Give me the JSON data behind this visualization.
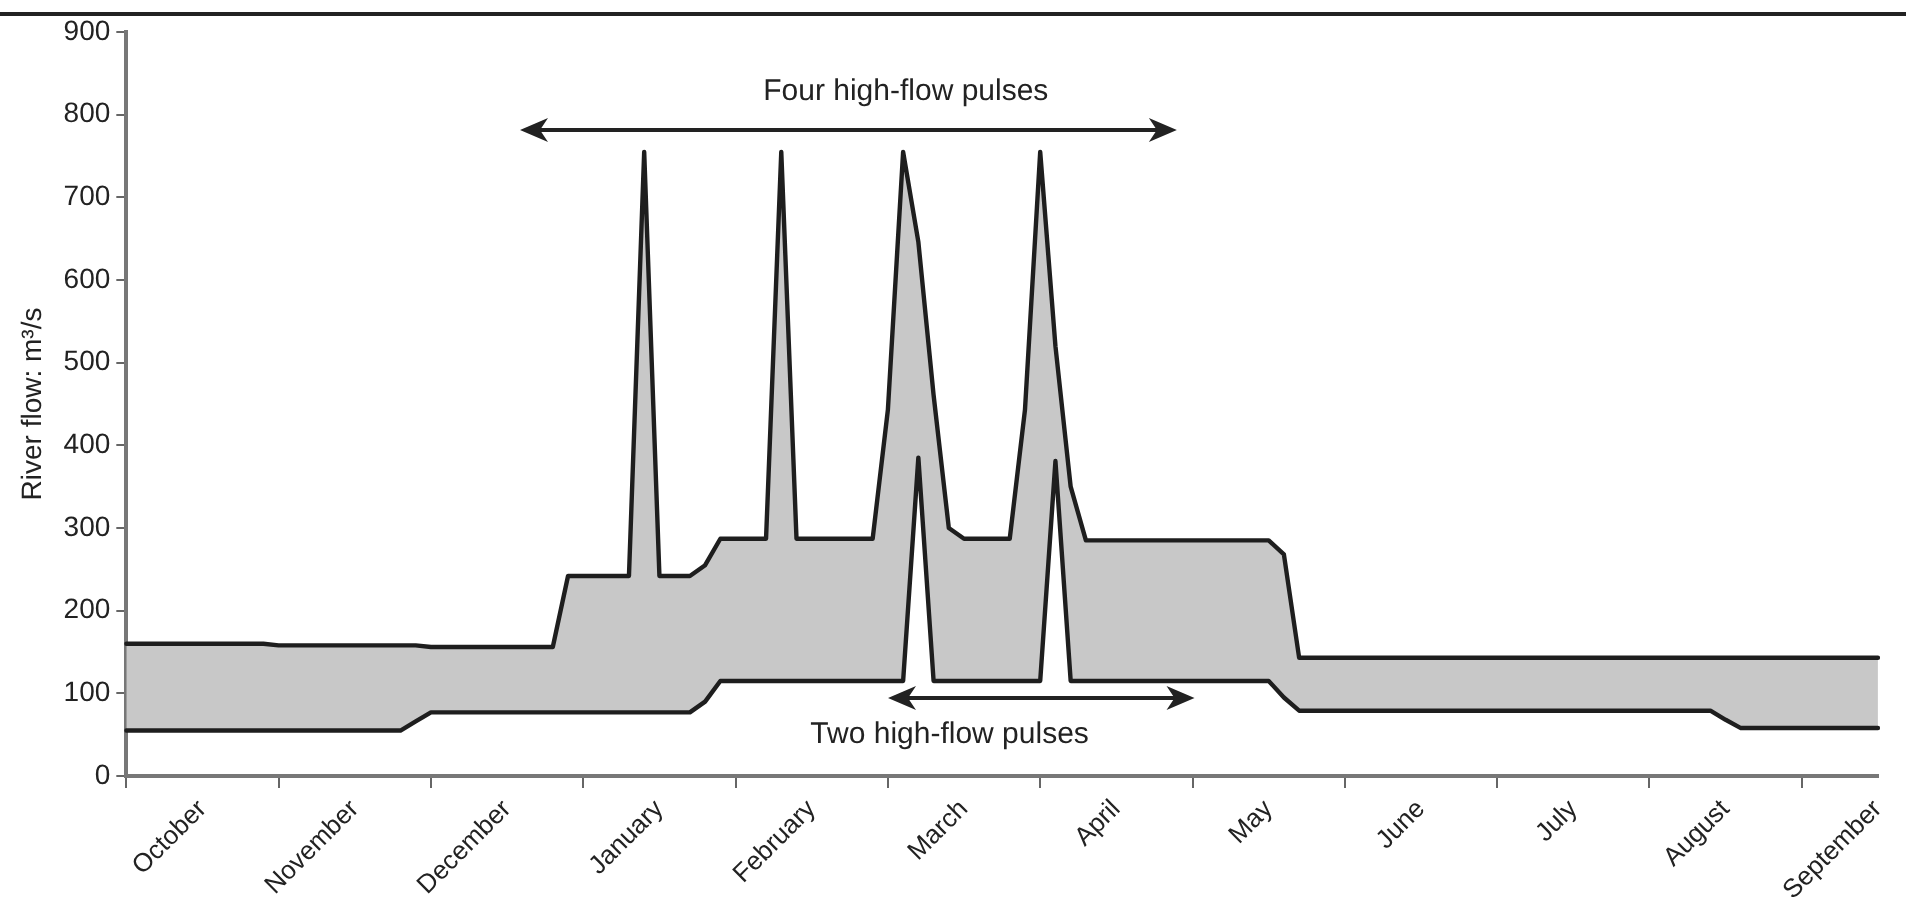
{
  "chart_data": {
    "type": "line",
    "ylabel": "River flow: m³/s",
    "categories": [
      null,
      null,
      null,
      null,
      null,
      "October",
      null,
      null,
      null,
      null,
      null,
      null,
      null,
      null,
      null,
      "November",
      null,
      null,
      null,
      null,
      null,
      null,
      null,
      null,
      null,
      "December",
      null,
      null,
      null,
      null,
      null,
      null,
      null,
      null,
      null,
      "January",
      null,
      null,
      null,
      null,
      null,
      null,
      null,
      null,
      null,
      "February",
      null,
      null,
      null,
      null,
      null,
      null,
      null,
      null,
      null,
      "March",
      null,
      null,
      null,
      null,
      null,
      null,
      null,
      null,
      null,
      "April",
      null,
      null,
      null,
      null,
      null,
      null,
      null,
      null,
      null,
      "May",
      null,
      null,
      null,
      null,
      null,
      null,
      null,
      null,
      null,
      "June",
      null,
      null,
      null,
      null,
      null,
      null,
      null,
      null,
      null,
      "July",
      null,
      null,
      null,
      null,
      null,
      null,
      null,
      null,
      null,
      "August",
      null,
      null,
      null,
      null,
      null,
      null,
      null,
      null,
      null,
      "September"
    ],
    "ylim": [
      0,
      900
    ],
    "yticks": [
      0,
      100,
      200,
      300,
      400,
      500,
      600,
      700,
      800,
      900
    ],
    "grid": false,
    "legend": false,
    "marker": "none",
    "line_style": "solid",
    "series": [
      {
        "color": "#1e1e1e",
        "values": [
          160,
          160,
          160,
          160,
          160,
          160,
          160,
          160,
          160,
          160,
          158,
          158,
          158,
          158,
          158,
          158,
          158,
          158,
          158,
          158,
          156,
          156,
          156,
          156,
          156,
          156,
          156,
          156,
          156,
          242,
          242,
          242,
          242,
          242,
          755,
          242,
          242,
          242,
          255,
          287,
          287,
          287,
          287,
          755,
          287,
          287,
          287,
          287,
          287,
          287,
          443,
          755,
          646,
          461,
          300,
          287,
          287,
          287,
          287,
          443,
          755,
          520,
          350,
          285,
          285,
          285,
          285,
          285,
          285,
          285,
          285,
          285,
          285,
          285,
          285,
          285,
          268,
          143,
          143,
          143,
          143,
          143,
          143,
          143,
          143,
          143,
          143,
          143,
          143,
          143,
          143,
          143,
          143,
          143,
          143,
          143,
          143,
          143,
          143,
          143,
          143,
          143,
          143,
          143,
          143,
          143,
          143,
          143,
          143,
          143,
          143,
          143,
          143,
          143,
          143,
          143
        ],
        "upper": [
          160,
          160,
          160,
          160,
          160,
          160,
          160,
          160,
          160,
          160,
          158,
          158,
          158,
          158,
          158,
          158,
          158,
          158,
          158,
          158,
          156,
          156,
          156,
          156,
          156,
          156,
          156,
          156,
          156,
          242,
          242,
          242,
          242,
          242,
          755,
          242,
          242,
          242,
          255,
          287,
          287,
          287,
          287,
          755,
          287,
          287,
          287,
          287,
          287,
          287,
          443,
          755,
          646,
          461,
          300,
          287,
          287,
          287,
          287,
          443,
          755,
          520,
          350,
          285,
          285,
          285,
          285,
          285,
          285,
          285,
          285,
          285,
          285,
          285,
          285,
          285,
          268,
          143,
          143,
          143,
          143,
          143,
          143,
          143,
          143,
          143,
          143,
          143,
          143,
          143,
          143,
          143,
          143,
          143,
          143,
          143,
          143,
          143,
          143,
          143,
          143,
          143,
          143,
          143,
          143,
          143,
          143,
          143,
          143,
          143,
          143,
          143,
          143,
          143,
          143,
          143
        ],
        "lower": [
          55,
          55,
          55,
          55,
          55,
          55,
          55,
          55,
          55,
          55,
          55,
          55,
          55,
          55,
          55,
          55,
          55,
          55,
          55,
          66,
          77,
          77,
          77,
          77,
          77,
          77,
          77,
          77,
          77,
          77,
          77,
          77,
          77,
          77,
          77,
          77,
          77,
          77,
          90,
          115,
          115,
          115,
          115,
          115,
          115,
          115,
          115,
          115,
          115,
          115,
          115,
          115,
          385,
          115,
          115,
          115,
          115,
          115,
          115,
          115,
          115,
          381,
          115,
          115,
          115,
          115,
          115,
          115,
          115,
          115,
          115,
          115,
          115,
          115,
          115,
          115,
          95,
          79,
          79,
          79,
          79,
          79,
          79,
          79,
          79,
          79,
          79,
          79,
          79,
          79,
          79,
          79,
          79,
          79,
          79,
          79,
          79,
          79,
          79,
          79,
          79,
          79,
          79,
          79,
          79,
          68,
          58,
          58,
          58,
          58,
          58,
          58,
          58,
          58,
          58,
          58
        ]
      },
      {
        "color": "#1e1e1e",
        "values": [
          55,
          55,
          55,
          55,
          55,
          55,
          55,
          55,
          55,
          55,
          55,
          55,
          55,
          55,
          55,
          55,
          55,
          55,
          55,
          66,
          77,
          77,
          77,
          77,
          77,
          77,
          77,
          77,
          77,
          77,
          77,
          77,
          77,
          77,
          77,
          77,
          77,
          77,
          90,
          115,
          115,
          115,
          115,
          115,
          115,
          115,
          115,
          115,
          115,
          115,
          115,
          115,
          385,
          115,
          115,
          115,
          115,
          115,
          115,
          115,
          115,
          381,
          115,
          115,
          115,
          115,
          115,
          115,
          115,
          115,
          115,
          115,
          115,
          115,
          115,
          115,
          95,
          79,
          79,
          79,
          79,
          79,
          79,
          79,
          79,
          79,
          79,
          79,
          79,
          79,
          79,
          79,
          79,
          79,
          79,
          79,
          79,
          79,
          79,
          79,
          79,
          79,
          79,
          79,
          79,
          68,
          58,
          58,
          58,
          58,
          58,
          58,
          58,
          58,
          58,
          58
        ]
      }
    ],
    "annotations": [
      "Four high-flow pulses",
      "Two high-flow pulses"
    ]
  }
}
